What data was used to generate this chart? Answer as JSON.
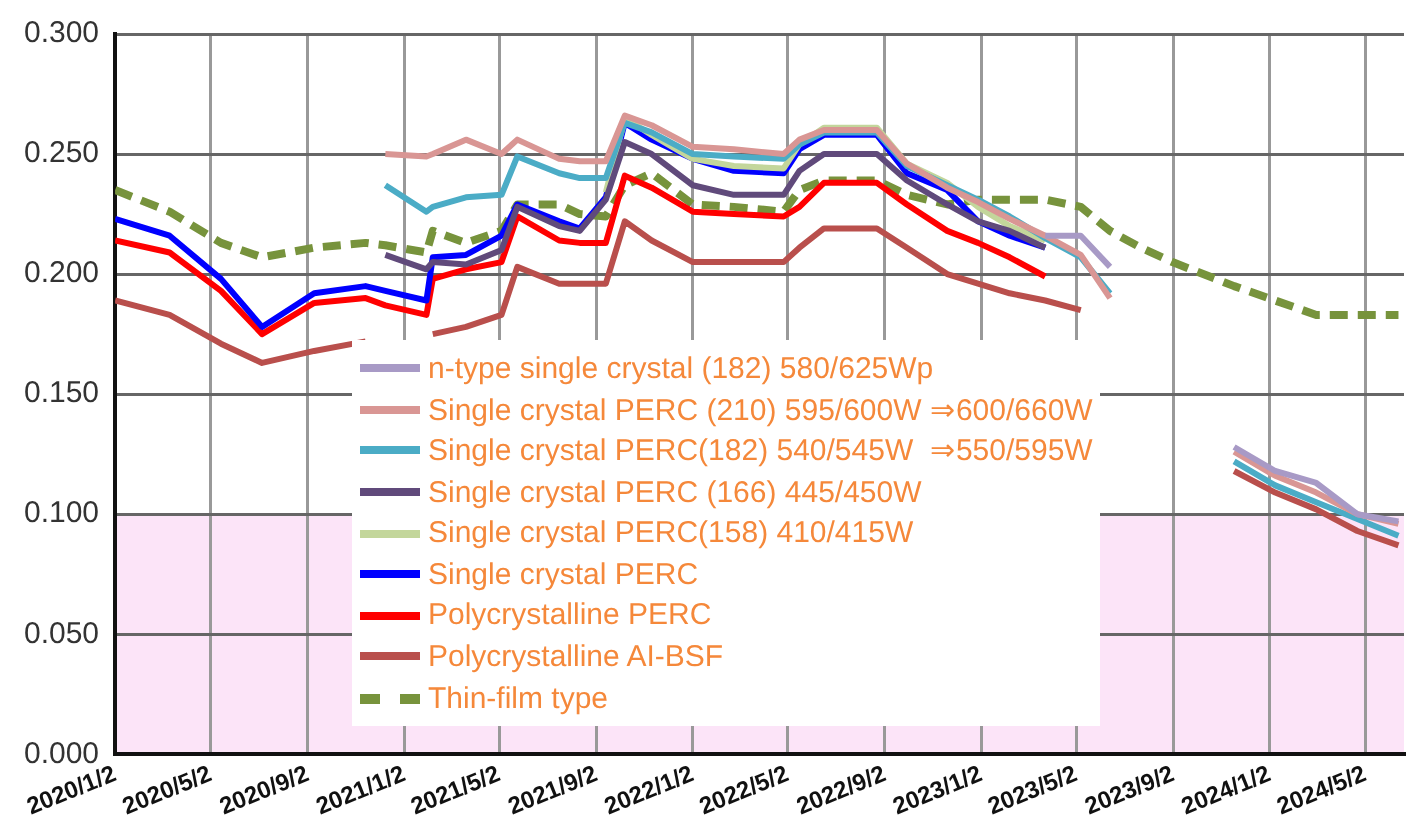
{
  "chart_data": {
    "type": "line",
    "marker": "none",
    "grid": true,
    "legend": "bottom",
    "x": [
      "2020-01-02",
      "2020-03-11",
      "2020-05-15",
      "2020-07-06",
      "2020-09-10",
      "2020-11-14",
      "2020-12-09",
      "2021-01-30",
      "2021-02-07",
      "2021-03-21",
      "2021-05-05",
      "2021-05-25",
      "2021-07-17",
      "2021-08-12",
      "2021-09-14",
      "2021-10-08",
      "2021-11-11",
      "2022-01-02",
      "2022-02-23",
      "2022-04-27",
      "2022-05-17",
      "2022-06-17",
      "2022-08-23",
      "2022-09-30",
      "2022-11-20",
      "2022-12-29",
      "2023-02-07",
      "2023-03-24",
      "2023-05-08",
      "2023-06-14",
      "2023-07-23",
      "2023-09-01",
      "2023-11-18",
      "2024-01-09",
      "2024-03-01",
      "2024-04-22",
      "2024-06-13"
    ],
    "xlim": [
      "2020-01-02",
      "2024-06-20"
    ],
    "xticks": [
      {
        "value": "2020-01-02",
        "label": "2020/1/2"
      },
      {
        "value": "2020-05-02",
        "label": "2020/5/2"
      },
      {
        "value": "2020-09-02",
        "label": "2020/9/2"
      },
      {
        "value": "2021-01-02",
        "label": "2021/1/2"
      },
      {
        "value": "2021-05-02",
        "label": "2021/5/2"
      },
      {
        "value": "2021-09-02",
        "label": "2021/9/2"
      },
      {
        "value": "2022-01-02",
        "label": "2022/1/2"
      },
      {
        "value": "2022-05-02",
        "label": "2022/5/2"
      },
      {
        "value": "2022-09-02",
        "label": "2022/9/2"
      },
      {
        "value": "2023-01-02",
        "label": "2023/1/2"
      },
      {
        "value": "2023-05-02",
        "label": "2023/5/2"
      },
      {
        "value": "2023-09-02",
        "label": "2023/9/2"
      },
      {
        "value": "2024-01-02",
        "label": "2024/1/2"
      },
      {
        "value": "2024-05-02",
        "label": "2024/5/2"
      }
    ],
    "ylim": [
      0,
      0.3
    ],
    "yticks": [
      {
        "value": 0,
        "label": "0.000"
      },
      {
        "value": 0.05,
        "label": "0.050"
      },
      {
        "value": 0.1,
        "label": "0.100"
      },
      {
        "value": 0.15,
        "label": "0.150"
      },
      {
        "value": 0.2,
        "label": "0.200"
      },
      {
        "value": 0.25,
        "label": "0.250"
      },
      {
        "value": 0.3,
        "label": "0.300"
      }
    ],
    "bands": [
      {
        "axis": "y",
        "from": 0,
        "to": 0.1,
        "color": "#fce4f8"
      }
    ],
    "series": [
      {
        "name": "n-type single crystal (182) 580/625Wp",
        "color": "#a89ac6",
        "values": [
          null,
          null,
          null,
          null,
          null,
          null,
          null,
          null,
          null,
          null,
          null,
          null,
          null,
          null,
          null,
          null,
          null,
          null,
          null,
          null,
          null,
          null,
          null,
          null,
          null,
          null,
          null,
          0.216,
          0.216,
          0.203,
          null,
          null,
          0.128,
          0.118,
          0.113,
          0.1,
          0.097
        ]
      },
      {
        "name": "Single crystal PERC (210) 595/600W ⇒600/660W",
        "color": "#d99694",
        "values": [
          null,
          null,
          null,
          null,
          null,
          null,
          0.25,
          0.249,
          0.25,
          0.256,
          0.25,
          0.256,
          0.248,
          0.247,
          0.247,
          0.266,
          0.262,
          0.253,
          0.252,
          0.25,
          0.256,
          0.26,
          0.26,
          0.246,
          0.236,
          0.23,
          0.223,
          0.216,
          0.208,
          0.19,
          null,
          null,
          0.126,
          0.116,
          0.109,
          0.1,
          0.096
        ]
      },
      {
        "name": "Single crystal PERC(182) 540/545W  ⇒550/595W",
        "color": "#4bacc6",
        "values": [
          null,
          null,
          null,
          null,
          null,
          null,
          0.237,
          0.226,
          0.228,
          0.232,
          0.233,
          0.249,
          0.242,
          0.24,
          0.24,
          0.263,
          0.259,
          0.25,
          0.249,
          0.248,
          0.254,
          0.259,
          0.259,
          0.245,
          0.237,
          0.231,
          0.224,
          0.215,
          0.207,
          0.192,
          null,
          null,
          0.122,
          0.112,
          0.105,
          0.098,
          0.091
        ]
      },
      {
        "name": "Single crystal PERC (166) 445/450W",
        "color": "#604a7b",
        "values": [
          null,
          null,
          null,
          null,
          null,
          null,
          0.208,
          0.202,
          0.205,
          0.204,
          0.21,
          0.228,
          0.22,
          0.218,
          0.231,
          0.255,
          0.25,
          0.237,
          0.233,
          0.233,
          0.243,
          0.25,
          0.25,
          0.239,
          0.229,
          0.222,
          0.218,
          0.211,
          null,
          null,
          null,
          null,
          null,
          null,
          null,
          null,
          null
        ]
      },
      {
        "name": "Single crystal PERC(158) 410/415W",
        "color": "#c3d69b",
        "values": [
          null,
          null,
          null,
          null,
          null,
          null,
          null,
          null,
          null,
          null,
          null,
          null,
          null,
          null,
          0.234,
          0.265,
          0.258,
          0.248,
          0.245,
          0.244,
          0.254,
          0.261,
          0.261,
          0.246,
          0.238,
          0.228,
          0.22,
          0.214,
          null,
          null,
          null,
          null,
          null,
          null,
          null,
          null,
          null
        ]
      },
      {
        "name": "Single crystal PERC",
        "color": "#0000ff",
        "values": [
          0.223,
          0.216,
          0.198,
          0.178,
          0.192,
          0.195,
          0.193,
          0.189,
          0.207,
          0.208,
          0.216,
          0.229,
          0.222,
          0.219,
          0.232,
          0.263,
          0.256,
          0.248,
          0.243,
          0.242,
          0.252,
          0.258,
          0.258,
          0.242,
          0.235,
          0.222,
          0.216,
          0.211,
          null,
          null,
          null,
          null,
          null,
          null,
          null,
          null,
          null
        ]
      },
      {
        "name": "Polycrystalline PERC",
        "color": "#ff0000",
        "values": [
          0.214,
          0.209,
          0.193,
          0.175,
          0.188,
          0.19,
          0.187,
          0.183,
          0.198,
          0.202,
          0.205,
          0.224,
          0.214,
          0.213,
          0.213,
          0.241,
          0.236,
          0.226,
          0.225,
          0.224,
          0.228,
          0.238,
          0.238,
          0.229,
          0.218,
          0.213,
          0.207,
          0.199,
          null,
          null,
          null,
          null,
          null,
          null,
          null,
          null,
          null
        ]
      },
      {
        "name": "Polycrystalline AI-BSF",
        "color": "#b94f4c",
        "values": [
          0.189,
          0.183,
          0.171,
          0.163,
          0.168,
          0.172,
          null,
          null,
          0.175,
          0.178,
          0.183,
          0.203,
          0.196,
          0.196,
          0.196,
          0.222,
          0.214,
          0.205,
          0.205,
          0.205,
          0.211,
          0.219,
          0.219,
          0.211,
          0.2,
          0.196,
          0.192,
          0.189,
          0.185,
          null,
          null,
          null,
          0.118,
          0.109,
          0.102,
          0.093,
          0.087
        ]
      },
      {
        "name": "Thin-film type",
        "color": "#77933c",
        "line_style": "dashed",
        "values": [
          0.235,
          0.226,
          0.213,
          0.207,
          0.211,
          0.213,
          0.212,
          0.209,
          0.218,
          0.213,
          0.218,
          0.229,
          0.229,
          0.225,
          0.224,
          0.237,
          0.242,
          0.229,
          0.228,
          0.226,
          0.235,
          0.239,
          0.239,
          0.233,
          0.229,
          0.231,
          0.231,
          0.231,
          0.228,
          0.218,
          0.211,
          0.205,
          0.195,
          0.189,
          0.183,
          0.183,
          0.183
        ]
      }
    ]
  }
}
